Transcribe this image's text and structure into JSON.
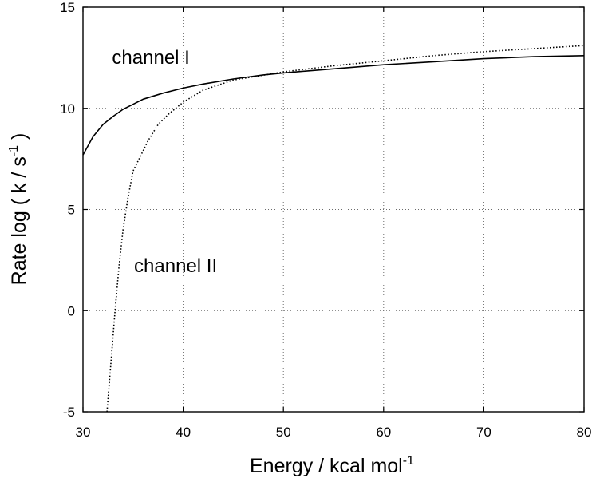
{
  "chart_data": {
    "type": "line",
    "title": "",
    "xlabel": "Energy / kcal mol",
    "xlabel_sup": "-1",
    "ylabel": "Rate log ( k / s",
    "ylabel_sup": "-1",
    "ylabel_close": " )",
    "xlim": [
      30,
      80
    ],
    "ylim": [
      -5,
      15
    ],
    "xticks": [
      30,
      40,
      50,
      60,
      70,
      80
    ],
    "yticks": [
      -5,
      0,
      5,
      10,
      15
    ],
    "grid": true,
    "series": [
      {
        "name": "channel I",
        "style": "solid",
        "color": "#000000",
        "points": [
          [
            30,
            7.7
          ],
          [
            31,
            8.6
          ],
          [
            32,
            9.2
          ],
          [
            33,
            9.6
          ],
          [
            34,
            9.95
          ],
          [
            35,
            10.2
          ],
          [
            36,
            10.45
          ],
          [
            38,
            10.75
          ],
          [
            40,
            11.0
          ],
          [
            42,
            11.2
          ],
          [
            45,
            11.45
          ],
          [
            48,
            11.65
          ],
          [
            50,
            11.75
          ],
          [
            55,
            11.95
          ],
          [
            60,
            12.15
          ],
          [
            65,
            12.3
          ],
          [
            70,
            12.45
          ],
          [
            75,
            12.55
          ],
          [
            80,
            12.6
          ]
        ]
      },
      {
        "name": "channel II",
        "style": "dotted",
        "color": "#000000",
        "points": [
          [
            32.4,
            -5.0
          ],
          [
            32.8,
            -2.5
          ],
          [
            33.2,
            0.0
          ],
          [
            33.6,
            2.2
          ],
          [
            34.0,
            4.0
          ],
          [
            34.5,
            5.6
          ],
          [
            35.0,
            6.9
          ],
          [
            35.7,
            7.6
          ],
          [
            36.5,
            8.4
          ],
          [
            37.5,
            9.2
          ],
          [
            38.5,
            9.7
          ],
          [
            40,
            10.3
          ],
          [
            42,
            10.9
          ],
          [
            45,
            11.4
          ],
          [
            50,
            11.8
          ],
          [
            55,
            12.1
          ],
          [
            60,
            12.35
          ],
          [
            65,
            12.6
          ],
          [
            70,
            12.8
          ],
          [
            75,
            12.95
          ],
          [
            80,
            13.1
          ]
        ]
      }
    ],
    "annotations": [
      {
        "text": "channel I",
        "x": 32.9,
        "y": 12.2
      },
      {
        "text": "channel II",
        "x": 35.1,
        "y": 1.9
      }
    ]
  }
}
